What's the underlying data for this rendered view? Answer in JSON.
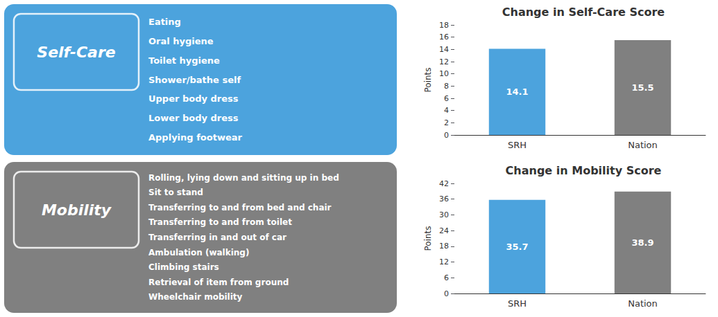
{
  "chart_data": [
    {
      "type": "bar",
      "title": "Change in Self-Care Score",
      "categories": [
        "SRH",
        "Nation"
      ],
      "values": [
        14.1,
        15.5
      ],
      "colors": [
        "#4CA3DD",
        "#808080"
      ],
      "ylim": [
        0,
        18
      ],
      "yticks": [
        0,
        2,
        4,
        6,
        8,
        10,
        12,
        14,
        16,
        18
      ],
      "ylabel": "Points",
      "grid": false,
      "data_labels": true,
      "annotations": {
        "title": "Self-Care",
        "color": "#4CA3DD",
        "items": [
          "Eating",
          "Oral hygiene",
          "Toilet hygiene",
          "Shower/bathe self",
          "Upper body dress",
          "Lower body dress",
          "Applying footwear"
        ]
      }
    },
    {
      "type": "bar",
      "title": "Change in Mobility Score",
      "categories": [
        "SRH",
        "Nation"
      ],
      "values": [
        35.7,
        38.9
      ],
      "colors": [
        "#4CA3DD",
        "#808080"
      ],
      "ylim": [
        0,
        42
      ],
      "yticks": [
        0,
        6,
        12,
        18,
        24,
        30,
        36,
        42
      ],
      "ylabel": "Points",
      "grid": false,
      "data_labels": true,
      "annotations": {
        "title": "Mobility",
        "color": "#808080",
        "items": [
          "Rolling, lying down and sitting up in bed",
          "Sit to stand",
          "Transferring to and from bed and chair",
          "Transferring to and from toilet",
          "Transferring in and out of car",
          "Ambulation (walking)",
          "Climbing stairs",
          "Retrieval of item from ground",
          "Wheelchair mobility"
        ]
      }
    }
  ]
}
